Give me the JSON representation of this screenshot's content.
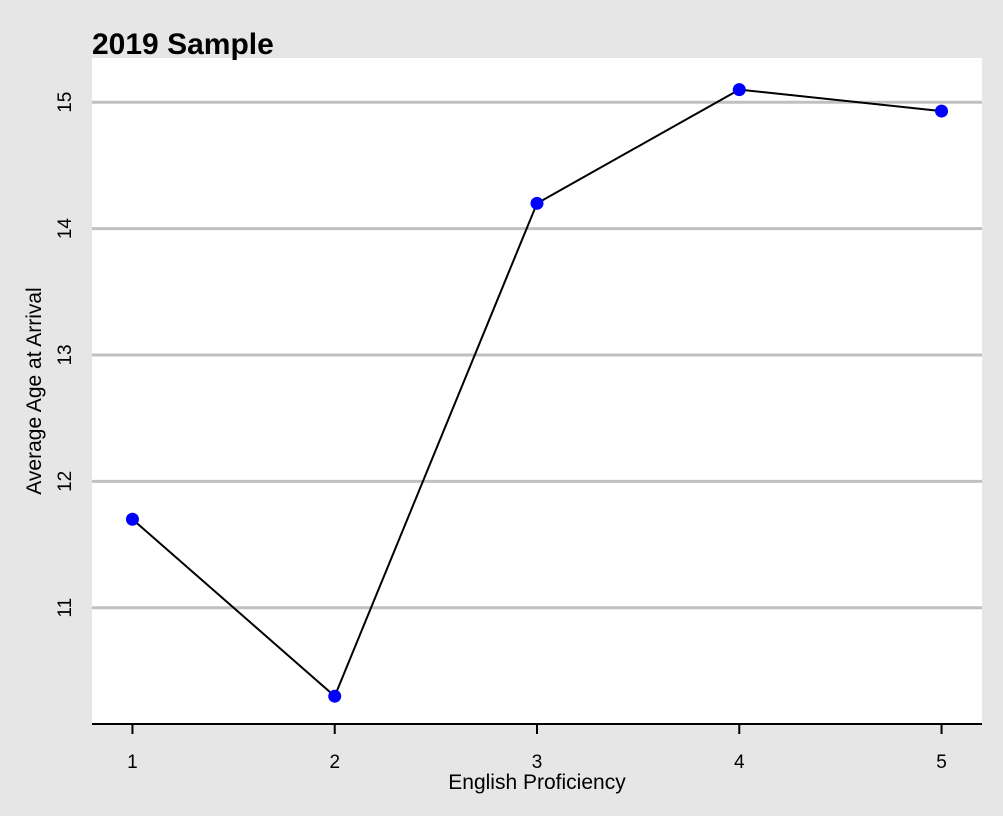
{
  "chart_data": {
    "type": "line",
    "title": "2019 Sample",
    "xlabel": "English Proficiency",
    "ylabel": "Average Age at Arrival",
    "x": [
      1,
      2,
      3,
      4,
      5
    ],
    "x_tick_labels": [
      "1",
      "2",
      "3",
      "4",
      "5"
    ],
    "y_ticks": [
      11,
      12,
      13,
      14,
      15
    ],
    "y_tick_labels": [
      "11",
      "12",
      "13",
      "14",
      "15"
    ],
    "series": [
      {
        "values": [
          11.7,
          10.3,
          14.2,
          15.1,
          14.93
        ]
      }
    ],
    "xlim": [
      0.8,
      5.2
    ],
    "ylim": [
      10.08,
      15.35
    ],
    "grid": "horizontal",
    "legend": "none",
    "colors": {
      "page_background": "#e6e6e6",
      "plot_background": "#ffffff",
      "grid": "#c0c0c0",
      "line": "#000000",
      "marker": "#0000ff",
      "axis": "#000000"
    }
  }
}
